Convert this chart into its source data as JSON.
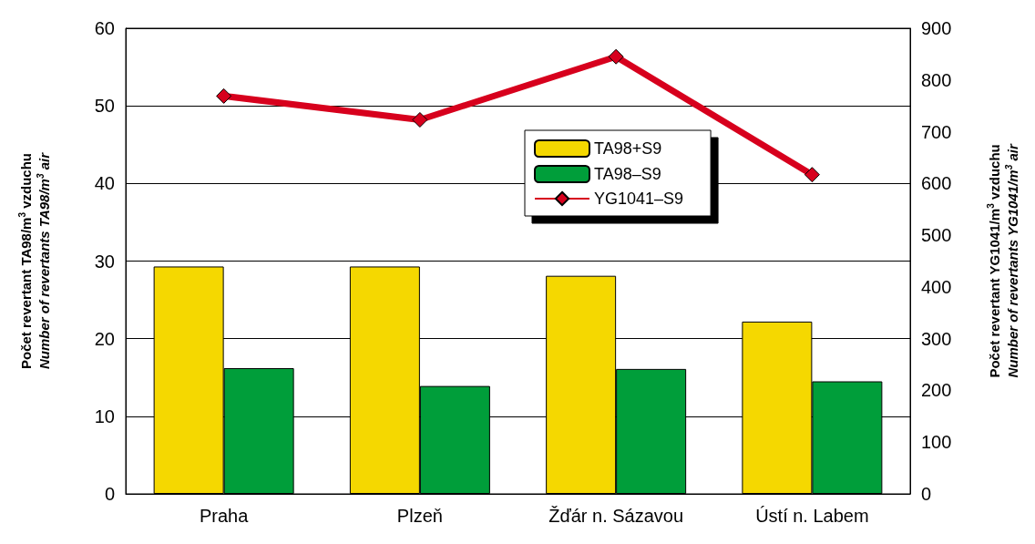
{
  "chart_data": {
    "type": "bar",
    "categories": [
      "Praha",
      "Plzeň",
      "Žďár n. Sázavou",
      "Ústí n. Labem"
    ],
    "ylabel": "Počet revertant TA98/m$^{3}$ vzduchu\nNumber of revertants TA98/m$^{3}$ air",
    "y2label": "Počet revertant YG1041/m$^{3}$ vzduchu\nNumber of revertants YG1041/m$^{3}$ air",
    "ylim": [
      0,
      60
    ],
    "yticks": [
      0,
      10,
      20,
      30,
      40,
      50,
      60
    ],
    "y2lim": [
      0,
      900
    ],
    "y2ticks": [
      0,
      100,
      200,
      300,
      400,
      500,
      600,
      700,
      800,
      900
    ],
    "series": [
      {
        "name": "TA98+S9",
        "color": "#f5d800",
        "values": [
          29.3,
          29.3,
          28.1,
          22.2
        ]
      },
      {
        "name": "TA98–S9",
        "color": "#009e3a",
        "values": [
          16.2,
          13.9,
          16.1,
          14.5
        ]
      },
      {
        "name": "YG1041–S9",
        "type": "line",
        "axis": "y2",
        "color": "#d7001d",
        "marker": "diamond",
        "values": [
          769,
          723,
          845,
          617
        ]
      }
    ],
    "grid": "y",
    "legend": "top"
  }
}
